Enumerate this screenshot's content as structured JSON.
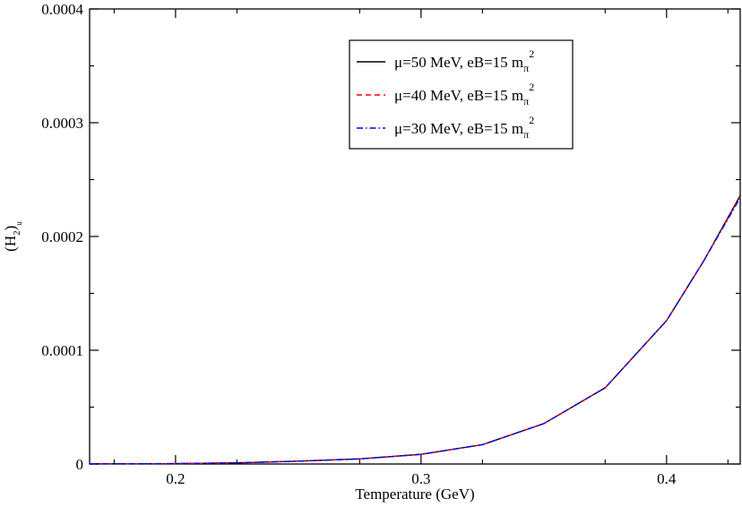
{
  "chart_data": {
    "type": "line",
    "title": "",
    "xlabel": "Temperature (GeV)",
    "ylabel": {
      "main": "(H",
      "sub1": "2",
      "close": ")",
      "sub2": "u"
    },
    "xlim": [
      0.165,
      0.43
    ],
    "ylim": [
      0,
      0.0004
    ],
    "xticks": [
      0.2,
      0.3,
      0.4
    ],
    "xtick_labels": [
      "0.2",
      "0.3",
      "0.4"
    ],
    "yticks": [
      0,
      0.0001,
      0.0002,
      0.0003,
      0.0004
    ],
    "ytick_labels": [
      "0",
      "0.0001",
      "0.0002",
      "0.0003",
      "0.0004"
    ],
    "grid": false,
    "legend_position": "top-right",
    "series": [
      {
        "name": {
          "main": "μ=50 MeV, eB=15 m",
          "sub": "π",
          "sup": "2"
        },
        "color": "#000000",
        "dash": "solid",
        "x": [
          0.165,
          0.2,
          0.225,
          0.25,
          0.275,
          0.3,
          0.325,
          0.35,
          0.375,
          0.4,
          0.415,
          0.43
        ],
        "y": [
          1e-07,
          3e-07,
          1e-06,
          2.5e-06,
          4.5e-06,
          8.5e-06,
          1.7e-05,
          3.55e-05,
          6.7e-05,
          0.000126,
          0.000178,
          0.000236
        ]
      },
      {
        "name": {
          "main": "μ=40 MeV, eB=15 m",
          "sub": "π",
          "sup": "2"
        },
        "color": "#ff0000",
        "dash": "dashed",
        "x": [
          0.165,
          0.2,
          0.225,
          0.25,
          0.275,
          0.3,
          0.325,
          0.35,
          0.375,
          0.4,
          0.415,
          0.43
        ],
        "y": [
          1e-07,
          3e-07,
          1e-06,
          2.5e-06,
          4.5e-06,
          8.5e-06,
          1.7e-05,
          3.55e-05,
          6.7e-05,
          0.000126,
          0.000178,
          0.000235
        ]
      },
      {
        "name": {
          "main": "μ=30 MeV, eB=15 m",
          "sub": "π",
          "sup": "2"
        },
        "color": "#0000ff",
        "dash": "dash-dot",
        "x": [
          0.165,
          0.2,
          0.225,
          0.25,
          0.275,
          0.3,
          0.325,
          0.35,
          0.375,
          0.4,
          0.415,
          0.43
        ],
        "y": [
          1e-07,
          3e-07,
          1e-06,
          2.5e-06,
          4.5e-06,
          8.5e-06,
          1.7e-05,
          3.55e-05,
          6.7e-05,
          0.000126,
          0.000178,
          0.000234
        ]
      }
    ]
  }
}
